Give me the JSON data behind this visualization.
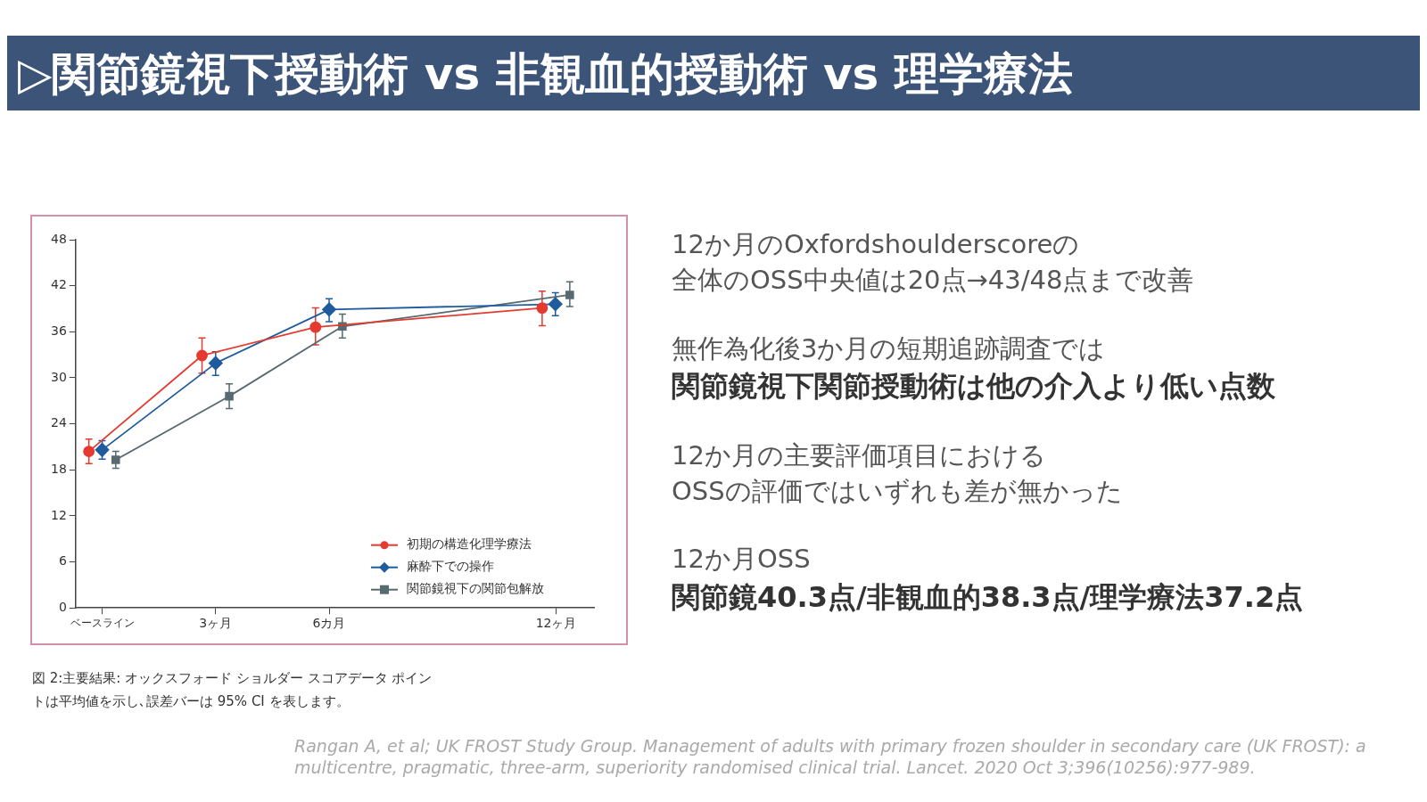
{
  "chart_data": {
    "type": "line",
    "title": "▷関節鏡視下授動術 vs 非観血的授動術 vs 理学療法",
    "xlim": [
      -0.7,
      13
    ],
    "xticks": [
      {
        "value": 0,
        "label": "ベースライン"
      },
      {
        "value": 3,
        "label": "3ヶ月"
      },
      {
        "value": 6,
        "label": "6カ月"
      },
      {
        "value": 12,
        "label": "12ヶ月"
      }
    ],
    "ylim": [
      0,
      48
    ],
    "yticks": [
      0,
      6,
      12,
      18,
      24,
      30,
      36,
      42,
      48
    ],
    "grid": false,
    "legend": "bottom right",
    "line_style": "solid",
    "series": [
      {
        "name": "初期の構造化理学療法",
        "color": "#e53a30",
        "marker": "circle",
        "x": [
          -0.35,
          2.64,
          5.64,
          11.63
        ],
        "values": [
          20.4,
          32.9,
          36.6,
          39.1
        ],
        "errors": [
          [
            18.8,
            22.0
          ],
          [
            30.6,
            35.2
          ],
          [
            34.3,
            39.1
          ],
          [
            36.8,
            41.3
          ]
        ]
      },
      {
        "name": "麻酔下での操作",
        "color": "#1f5c9e",
        "marker": "diamond",
        "x": [
          0,
          3,
          6,
          11.98
        ],
        "values": [
          20.6,
          31.9,
          38.9,
          39.6
        ],
        "errors": [
          [
            19.4,
            21.8
          ],
          [
            30.3,
            33.4
          ],
          [
            37.3,
            40.3
          ],
          [
            38.1,
            41.1
          ]
        ]
      },
      {
        "name": "関節鏡視下の関節包解放",
        "color": "#566a70",
        "marker": "square",
        "x": [
          0.36,
          3.36,
          6.35,
          12.36
        ],
        "values": [
          19.3,
          27.6,
          36.7,
          40.8
        ],
        "errors": [
          [
            18.2,
            20.4
          ],
          [
            26.0,
            29.2
          ],
          [
            35.2,
            38.3
          ],
          [
            39.3,
            42.5
          ]
        ]
      }
    ],
    "annotations": [
      "12か月のOxfordshoulderscoreの",
      "全体のOSS中央値は20点→43/48点まで改善",
      "無作為化後3か月の短期追跡調査では",
      "関節鏡視下関節授動術は他の介入より低い点数",
      "12か月の主要評価項目における",
      "OSSの評価ではいずれも差が無かった",
      "12か月OSS",
      "関節鏡40.3点/非観血的38.3点/理学療法37.2点",
      "図 2:主要結果: オックスフォード ショルダー スコアデータ ポイントは平均値を示し､誤差バーは 95% CI を表します。",
      "Rangan A, et al; UK FROST Study Group. Management of adults with primary frozen shoulder in secondary care (UK FROST): a multicentre, pragmatic, three-arm, superiority randomised clinical trial. Lancet. 2020 Oct 3;396(10256):977-989."
    ]
  }
}
